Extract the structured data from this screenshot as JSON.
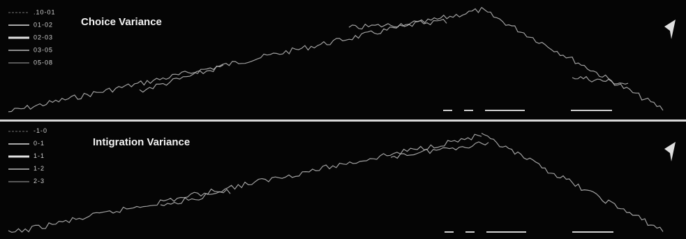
{
  "panels": [
    {
      "title": "Choice Variance",
      "legend": [
        ".10-01",
        "01-02",
        "02-03",
        "03-05",
        "05-08"
      ]
    },
    {
      "title": "Intigration Variance",
      "legend": "-1-0|0-1|1-1|1-2|2-3"
    }
  ]
}
